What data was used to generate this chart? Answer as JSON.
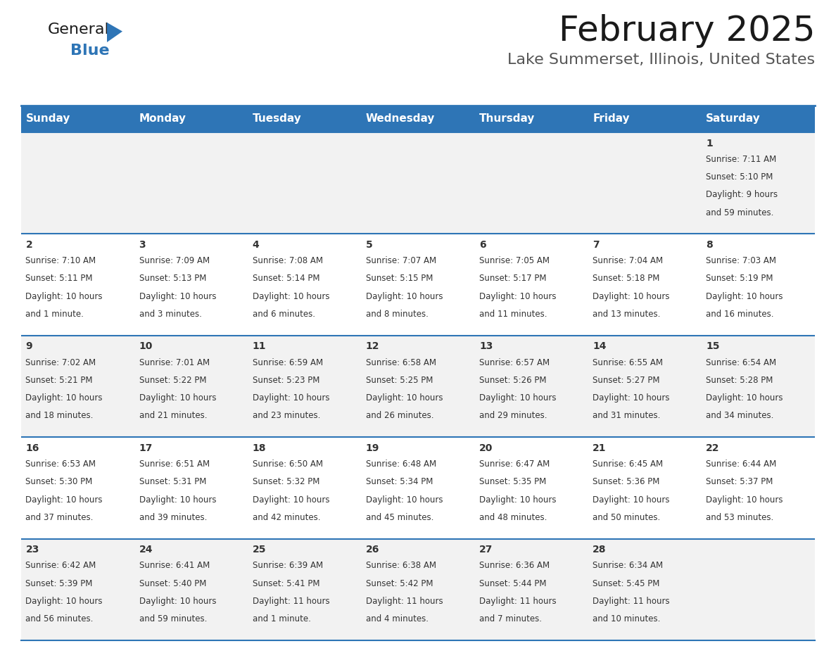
{
  "title": "February 2025",
  "subtitle": "Lake Summerset, Illinois, United States",
  "days_of_week": [
    "Sunday",
    "Monday",
    "Tuesday",
    "Wednesday",
    "Thursday",
    "Friday",
    "Saturday"
  ],
  "header_bg": "#2E75B6",
  "header_text_color": "#FFFFFF",
  "row_bg_white": "#FFFFFF",
  "row_bg_gray": "#F2F2F2",
  "separator_color": "#2E75B6",
  "text_color": "#333333",
  "calendar_data": [
    [
      {
        "day": "",
        "info": ""
      },
      {
        "day": "",
        "info": ""
      },
      {
        "day": "",
        "info": ""
      },
      {
        "day": "",
        "info": ""
      },
      {
        "day": "",
        "info": ""
      },
      {
        "day": "",
        "info": ""
      },
      {
        "day": "1",
        "info": "Sunrise: 7:11 AM\nSunset: 5:10 PM\nDaylight: 9 hours\nand 59 minutes."
      }
    ],
    [
      {
        "day": "2",
        "info": "Sunrise: 7:10 AM\nSunset: 5:11 PM\nDaylight: 10 hours\nand 1 minute."
      },
      {
        "day": "3",
        "info": "Sunrise: 7:09 AM\nSunset: 5:13 PM\nDaylight: 10 hours\nand 3 minutes."
      },
      {
        "day": "4",
        "info": "Sunrise: 7:08 AM\nSunset: 5:14 PM\nDaylight: 10 hours\nand 6 minutes."
      },
      {
        "day": "5",
        "info": "Sunrise: 7:07 AM\nSunset: 5:15 PM\nDaylight: 10 hours\nand 8 minutes."
      },
      {
        "day": "6",
        "info": "Sunrise: 7:05 AM\nSunset: 5:17 PM\nDaylight: 10 hours\nand 11 minutes."
      },
      {
        "day": "7",
        "info": "Sunrise: 7:04 AM\nSunset: 5:18 PM\nDaylight: 10 hours\nand 13 minutes."
      },
      {
        "day": "8",
        "info": "Sunrise: 7:03 AM\nSunset: 5:19 PM\nDaylight: 10 hours\nand 16 minutes."
      }
    ],
    [
      {
        "day": "9",
        "info": "Sunrise: 7:02 AM\nSunset: 5:21 PM\nDaylight: 10 hours\nand 18 minutes."
      },
      {
        "day": "10",
        "info": "Sunrise: 7:01 AM\nSunset: 5:22 PM\nDaylight: 10 hours\nand 21 minutes."
      },
      {
        "day": "11",
        "info": "Sunrise: 6:59 AM\nSunset: 5:23 PM\nDaylight: 10 hours\nand 23 minutes."
      },
      {
        "day": "12",
        "info": "Sunrise: 6:58 AM\nSunset: 5:25 PM\nDaylight: 10 hours\nand 26 minutes."
      },
      {
        "day": "13",
        "info": "Sunrise: 6:57 AM\nSunset: 5:26 PM\nDaylight: 10 hours\nand 29 minutes."
      },
      {
        "day": "14",
        "info": "Sunrise: 6:55 AM\nSunset: 5:27 PM\nDaylight: 10 hours\nand 31 minutes."
      },
      {
        "day": "15",
        "info": "Sunrise: 6:54 AM\nSunset: 5:28 PM\nDaylight: 10 hours\nand 34 minutes."
      }
    ],
    [
      {
        "day": "16",
        "info": "Sunrise: 6:53 AM\nSunset: 5:30 PM\nDaylight: 10 hours\nand 37 minutes."
      },
      {
        "day": "17",
        "info": "Sunrise: 6:51 AM\nSunset: 5:31 PM\nDaylight: 10 hours\nand 39 minutes."
      },
      {
        "day": "18",
        "info": "Sunrise: 6:50 AM\nSunset: 5:32 PM\nDaylight: 10 hours\nand 42 minutes."
      },
      {
        "day": "19",
        "info": "Sunrise: 6:48 AM\nSunset: 5:34 PM\nDaylight: 10 hours\nand 45 minutes."
      },
      {
        "day": "20",
        "info": "Sunrise: 6:47 AM\nSunset: 5:35 PM\nDaylight: 10 hours\nand 48 minutes."
      },
      {
        "day": "21",
        "info": "Sunrise: 6:45 AM\nSunset: 5:36 PM\nDaylight: 10 hours\nand 50 minutes."
      },
      {
        "day": "22",
        "info": "Sunrise: 6:44 AM\nSunset: 5:37 PM\nDaylight: 10 hours\nand 53 minutes."
      }
    ],
    [
      {
        "day": "23",
        "info": "Sunrise: 6:42 AM\nSunset: 5:39 PM\nDaylight: 10 hours\nand 56 minutes."
      },
      {
        "day": "24",
        "info": "Sunrise: 6:41 AM\nSunset: 5:40 PM\nDaylight: 10 hours\nand 59 minutes."
      },
      {
        "day": "25",
        "info": "Sunrise: 6:39 AM\nSunset: 5:41 PM\nDaylight: 11 hours\nand 1 minute."
      },
      {
        "day": "26",
        "info": "Sunrise: 6:38 AM\nSunset: 5:42 PM\nDaylight: 11 hours\nand 4 minutes."
      },
      {
        "day": "27",
        "info": "Sunrise: 6:36 AM\nSunset: 5:44 PM\nDaylight: 11 hours\nand 7 minutes."
      },
      {
        "day": "28",
        "info": "Sunrise: 6:34 AM\nSunset: 5:45 PM\nDaylight: 11 hours\nand 10 minutes."
      },
      {
        "day": "",
        "info": ""
      }
    ]
  ],
  "logo_text_general": "General",
  "logo_text_blue": "Blue",
  "logo_color_general": "#1a1a1a",
  "logo_color_blue": "#2E75B6",
  "logo_triangle_color": "#2E75B6",
  "title_color": "#1a1a1a",
  "subtitle_color": "#555555"
}
